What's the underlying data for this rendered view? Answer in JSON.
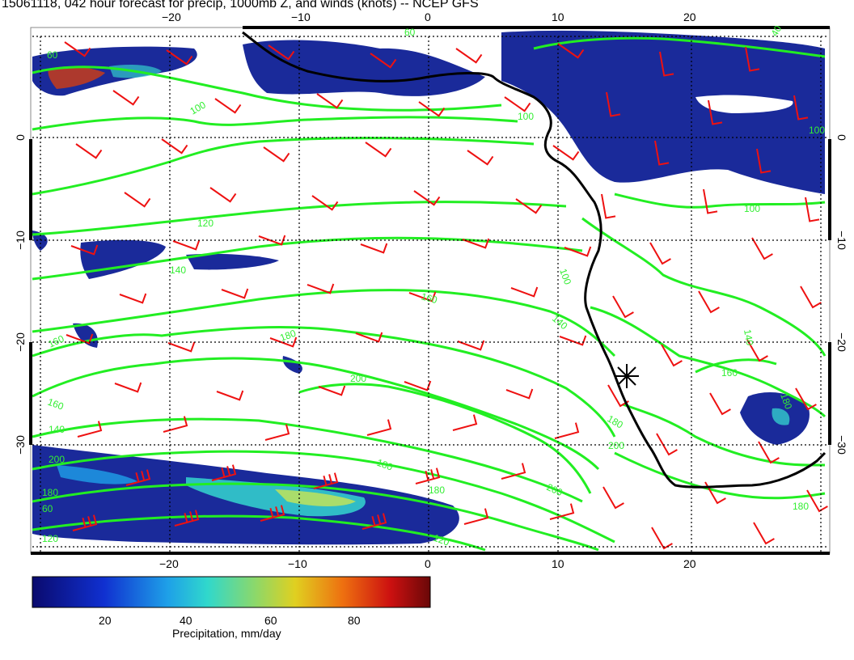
{
  "title": "15061118, 042 hour forecast for precip, 1000mb Z, and winds (knots) -- NCEP GFS",
  "map": {
    "lon_ticks": [
      "−20",
      "−10",
      "0",
      "10",
      "20"
    ],
    "lat_ticks": [
      "0",
      "−10",
      "−20",
      "−30"
    ],
    "contour_labels": [
      "60",
      "60",
      "40",
      "100",
      "100",
      "100",
      "100",
      "100",
      "120",
      "140",
      "140",
      "140",
      "160",
      "160",
      "160",
      "160",
      "180",
      "180",
      "180",
      "180",
      "180",
      "180",
      "180",
      "200",
      "200",
      "200",
      "200",
      "60",
      "120",
      "120",
      "140"
    ],
    "colors": {
      "coast": "#000000",
      "contour": "#22ee22",
      "barb": "#ee1111",
      "precip_low": "#1a2a9a",
      "precip_mid": "#33cccc",
      "precip_high": "#cc1111"
    },
    "marker": "star"
  },
  "colorbar": {
    "ticks": [
      "20",
      "40",
      "60",
      "80"
    ],
    "label": "Precipitation, mm/day",
    "min": 0,
    "max": 97
  }
}
